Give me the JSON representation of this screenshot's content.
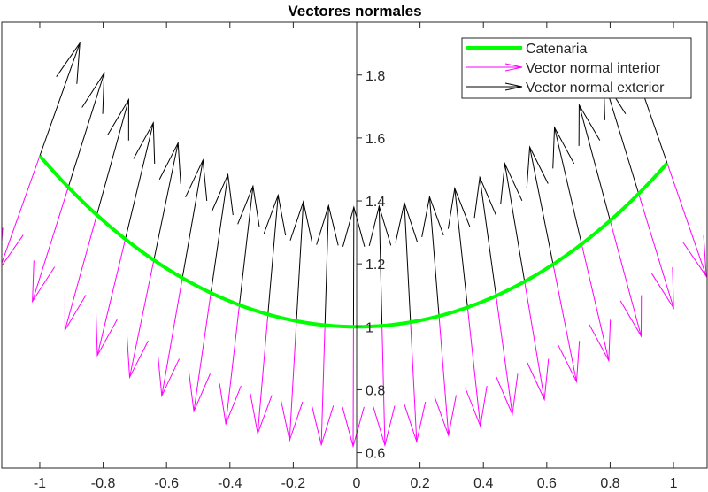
{
  "chart_data": {
    "type": "line",
    "title": "Vectores normales",
    "xlabel": "",
    "ylabel": "",
    "xlim": [
      -1.12,
      1.106
    ],
    "ylim": [
      0.551,
      1.968
    ],
    "xticks": [
      -1,
      -0.8,
      -0.6,
      -0.4,
      -0.2,
      0,
      0.2,
      0.4,
      0.6,
      0.8,
      1
    ],
    "xtick_labels": [
      "-1",
      "-0.8",
      "-0.6",
      "-0.4",
      "-0.2",
      "0",
      "0.2",
      "0.4",
      "0.6",
      "0.8",
      "1"
    ],
    "yticks": [
      0.6,
      0.8,
      1,
      1.2,
      1.4,
      1.6,
      1.8
    ],
    "ytick_labels": [
      "0.6",
      "0.8",
      "1",
      "1.2",
      "1.4",
      "1.6",
      "1.8"
    ],
    "y_axis_location": "origin",
    "grid": false,
    "legend_position": "top-right",
    "curve": {
      "function": "cosh(x)",
      "x_start": -1,
      "x_step": 0.09,
      "x_end": 0.98
    },
    "sample_x": [
      -1,
      -0.91,
      -0.82,
      -0.73,
      -0.64,
      -0.55,
      -0.46,
      -0.37,
      -0.28,
      -0.19,
      -0.1,
      -0.01,
      0.08,
      0.17,
      0.26,
      0.35,
      0.44,
      0.53,
      0.62,
      0.71,
      0.8,
      0.89,
      0.98
    ],
    "vector_length": 0.38,
    "vector_x_factor": 0.3,
    "series": [
      {
        "name": "Catenaria",
        "color": "#00ff00",
        "kind": "line"
      },
      {
        "name": "Vector normal interior",
        "color": "#ff00ff",
        "kind": "quiver",
        "direction": "down"
      },
      {
        "name": "Vector normal exterior",
        "color": "#000000",
        "kind": "quiver",
        "direction": "up"
      }
    ]
  }
}
